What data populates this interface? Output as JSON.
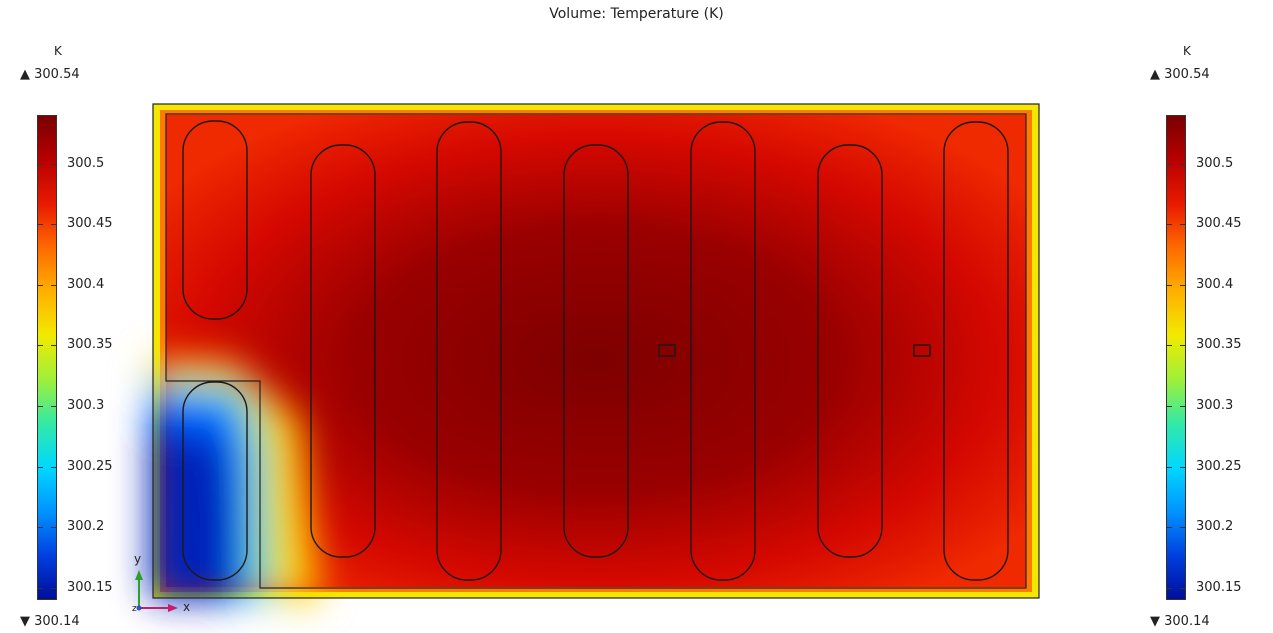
{
  "chart_data": {
    "type": "heatmap",
    "title": "Volume: Temperature (K)",
    "unit": "K",
    "max_value": 300.54,
    "min_value": 300.14,
    "max_label": "▲ 300.54",
    "min_label": "▼ 300.14",
    "ticks": [
      "300.5",
      "300.45",
      "300.4",
      "300.35",
      "300.3",
      "300.25",
      "300.2",
      "300.15"
    ],
    "tick_values": [
      300.5,
      300.45,
      300.4,
      300.35,
      300.3,
      300.25,
      300.2,
      300.15
    ],
    "colormap": [
      "#7a0000",
      "#b80000",
      "#e81a00",
      "#ff6a00",
      "#ffb000",
      "#f2ea00",
      "#9ef03a",
      "#33e9a6",
      "#00d8ff",
      "#0094ff",
      "#0040e0",
      "#000e9a"
    ],
    "triad": {
      "y": "y",
      "x": "x",
      "z": "z"
    }
  }
}
